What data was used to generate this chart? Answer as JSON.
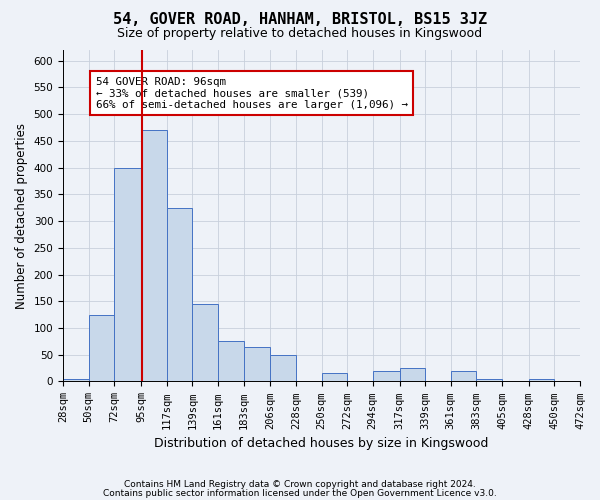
{
  "title": "54, GOVER ROAD, HANHAM, BRISTOL, BS15 3JZ",
  "subtitle": "Size of property relative to detached houses in Kingswood",
  "xlabel": "Distribution of detached houses by size in Kingswood",
  "ylabel": "Number of detached properties",
  "annotation_line1": "54 GOVER ROAD: 96sqm",
  "annotation_line2": "← 33% of detached houses are smaller (539)",
  "annotation_line3": "66% of semi-detached houses are larger (1,096) →",
  "property_size_sqm": 96,
  "bar_edges": [
    28,
    50,
    72,
    95,
    117,
    139,
    161,
    183,
    206,
    228,
    250,
    272,
    294,
    317,
    339,
    361,
    383,
    405,
    428,
    450,
    472
  ],
  "bar_heights": [
    5,
    125,
    400,
    470,
    325,
    145,
    75,
    65,
    50,
    0,
    15,
    0,
    20,
    25,
    0,
    20,
    5,
    0,
    5,
    0
  ],
  "bar_color": "#c8d8ea",
  "bar_edge_color": "#4472c4",
  "ref_line_color": "#cc0000",
  "annotation_box_edge_color": "#cc0000",
  "grid_color": "#c8d0dc",
  "background_color": "#eef2f8",
  "ylim": [
    0,
    620
  ],
  "yticks": [
    0,
    50,
    100,
    150,
    200,
    250,
    300,
    350,
    400,
    450,
    500,
    550,
    600
  ],
  "footer_line1": "Contains HM Land Registry data © Crown copyright and database right 2024.",
  "footer_line2": "Contains public sector information licensed under the Open Government Licence v3.0."
}
